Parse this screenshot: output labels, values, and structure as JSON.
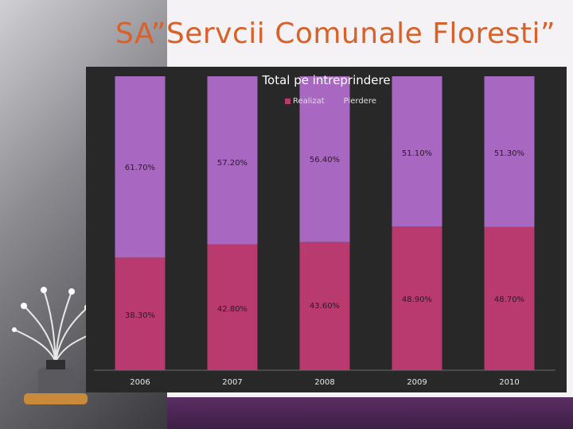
{
  "slide": {
    "title": "SA”Servcii Comunale Floresti”"
  },
  "icons": {
    "decoration": "water-meter-icon"
  },
  "colors": {
    "realizat": "#b83a6e",
    "pierdere": "#a867c0",
    "chart_bg": "#282828",
    "title": "#d8612a"
  },
  "chart_data": {
    "type": "bar",
    "stacked": true,
    "normalized": true,
    "title": "Total pe intreprindere",
    "categories": [
      "2006",
      "2007",
      "2008",
      "2009",
      "2010"
    ],
    "series": [
      {
        "name": "Realizat",
        "values": [
          38.3,
          42.8,
          43.6,
          48.9,
          48.7
        ],
        "labels": [
          "38.30%",
          "42.80%",
          "43.60%",
          "48.90%",
          "48.70%"
        ]
      },
      {
        "name": "Pierdere",
        "values": [
          61.7,
          57.2,
          56.4,
          51.1,
          51.3
        ],
        "labels": [
          "61.70%",
          "57.20%",
          "56.40%",
          "51.10%",
          "51.30%"
        ]
      }
    ],
    "ylim": [
      0,
      100
    ],
    "legend_position": "top-center",
    "grid": false
  }
}
